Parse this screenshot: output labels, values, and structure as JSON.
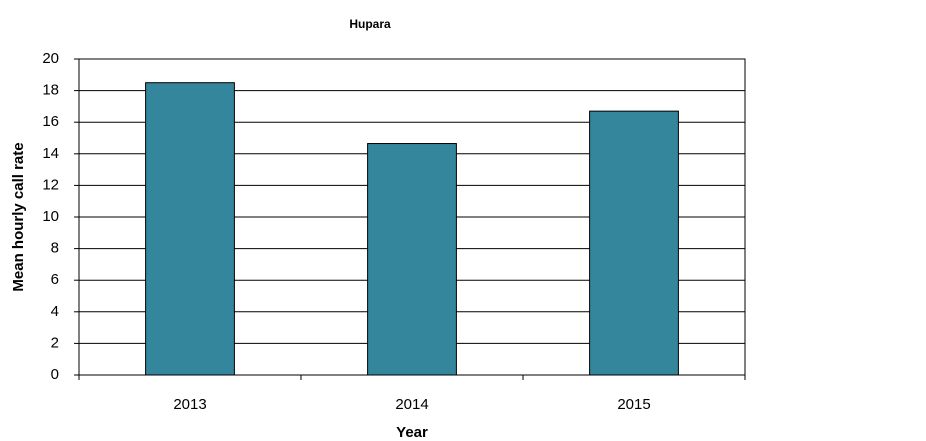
{
  "chart_data": {
    "type": "bar",
    "title": "Hupara",
    "categories": [
      "2013",
      "2014",
      "2015"
    ],
    "values": [
      18.5,
      14.65,
      16.7
    ],
    "color": "#33869b",
    "ylim": [
      0,
      20
    ],
    "yticks": [
      0,
      2,
      4,
      6,
      8,
      10,
      12,
      14,
      16,
      18,
      20
    ],
    "grid": true,
    "x_label": "Year",
    "y_label": "Mean hourly call rate"
  }
}
